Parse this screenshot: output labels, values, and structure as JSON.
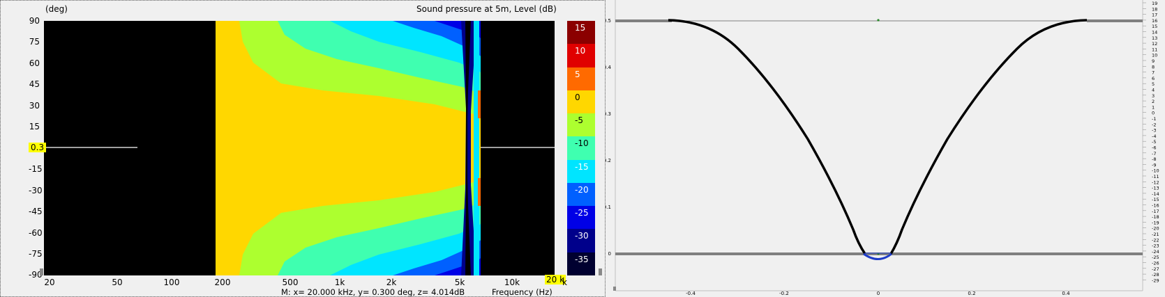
{
  "left": {
    "y_unit": "(deg)",
    "title": "Sound pressure at 5m, Level  (dB)",
    "y_ticks": [
      "90",
      "75",
      "60",
      "45",
      "30",
      "15",
      "",
      "-15",
      "-30",
      "-45",
      "-60",
      "-75",
      "-90"
    ],
    "y_cursor": "0.3",
    "x_ticks": [
      "20",
      "50",
      "100",
      "200",
      "500",
      "1k",
      "2k",
      "5k",
      "10k",
      "20 k"
    ],
    "x_cursor_tail": "k",
    "colorbar": {
      "labels": [
        "15",
        "10",
        "5",
        "0",
        "-5",
        "-10",
        "-15",
        "-20",
        "-25",
        "-30",
        "-35"
      ],
      "colors": [
        "#8b0000",
        "#e00000",
        "#ff6a00",
        "#ffd700",
        "#adff2f",
        "#3fffb0",
        "#00e5ff",
        "#0060ff",
        "#0000e6",
        "#00008b",
        "#000030"
      ]
    },
    "marker": "M:  x= 20.000 kHz,  y= 0.300 deg, z= 4.014dB",
    "x_axis_label": "Frequency  (Hz)"
  },
  "right": {
    "y_ticks": [
      "0.5",
      "0.4",
      "0.3",
      "0.2",
      "0.1",
      "0"
    ],
    "x_ticks": [
      "-0.4",
      "-0.2",
      "0",
      "0.2",
      "0.4"
    ],
    "scale": [
      "19",
      "18",
      "17",
      "16",
      "15",
      "14",
      "13",
      "12",
      "11",
      "10",
      "9",
      "8",
      "7",
      "6",
      "5",
      "4",
      "3",
      "2",
      "1",
      "0",
      "-1",
      "-2",
      "-3",
      "-4",
      "-5",
      "-6",
      "-7",
      "-8",
      "-9",
      "-10",
      "-11",
      "-12",
      "-13",
      "-14",
      "-15",
      "-16",
      "-17",
      "-18",
      "-19",
      "-20",
      "-21",
      "-22",
      "-23",
      "-24",
      "-25",
      "-26",
      "-27",
      "-28",
      "-29"
    ]
  }
}
